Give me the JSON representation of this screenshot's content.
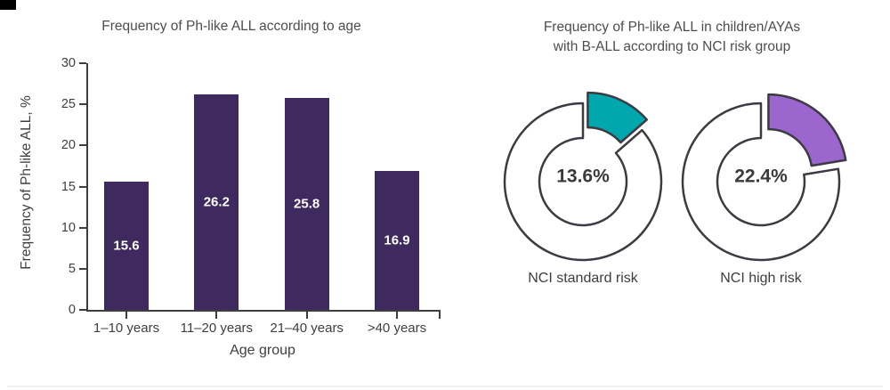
{
  "decor": {
    "top_left_bar_color": "#000000",
    "bottom_hairline_color": "#f2f2f2"
  },
  "palette": {
    "bar_purple": "#3e2a5e",
    "teal": "#00a8ae",
    "violet": "#9b66ce",
    "outline": "#3c3a42",
    "title_text": "#4d4d4d",
    "axis_text": "#3f3f3f",
    "bar_value_text": "#ffffff",
    "donut_center_text": "#3a3a3a"
  },
  "chart_data": [
    {
      "type": "bar",
      "title": "Frequency of Ph-like ALL according to age",
      "xlabel": "Age group",
      "ylabel": "Frequency of Ph-like ALL, %",
      "categories": [
        "1–10 years",
        "11–20 years",
        "21–40 years",
        ">40 years"
      ],
      "values": [
        15.6,
        26.2,
        25.8,
        16.9
      ],
      "value_labels": [
        "15.6",
        "26.2",
        "25.8",
        "16.9"
      ],
      "ylim": [
        0,
        30
      ],
      "y_ticks": [
        0,
        5,
        10,
        15,
        20,
        25,
        30
      ],
      "bar_color": "#3e2a5e",
      "grid": false,
      "legend": false
    },
    {
      "type": "pie",
      "variant": "exploded-donut-pair",
      "title": "Frequency of Ph-like ALL in children/AYAs with B-ALL according to NCI risk group",
      "title_lines": [
        "Frequency of Ph-like ALL in children/AYAs",
        "with B-ALL according to NCI risk group"
      ],
      "donuts": [
        {
          "label": "NCI standard risk",
          "value_percent": 13.6,
          "display": "13.6%",
          "slice_color": "#00a8ae",
          "remainder_color": "#ffffff"
        },
        {
          "label": "NCI high risk",
          "value_percent": 22.4,
          "display": "22.4%",
          "slice_color": "#9b66ce",
          "remainder_color": "#ffffff"
        }
      ],
      "outline_color": "#3c3a42",
      "legend": false
    }
  ]
}
